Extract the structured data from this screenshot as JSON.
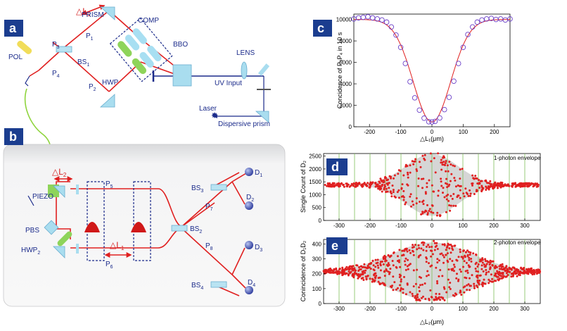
{
  "panels": {
    "a": "a",
    "b": "b",
    "c": "c",
    "d": "d",
    "e": "e"
  },
  "setup_a": {
    "prism": "PRISM",
    "delta_l1": "△L",
    "delta_l1_sub": "1",
    "comp": "COMP",
    "bbo": "BBO",
    "lens": "LENS",
    "uv_input": "UV Input",
    "laser": "Laser",
    "dispersive_prism": "Dispersive prism",
    "hwp": "HWP",
    "pol": "POL",
    "bs1": "BS",
    "bs1_sub": "1",
    "p1": "P",
    "p1_sub": "1",
    "p2": "P",
    "p2_sub": "2",
    "p3": "P",
    "p3_sub": "3",
    "p4": "P",
    "p4_sub": "4"
  },
  "setup_b": {
    "delta_l2": "△L",
    "delta_l2_sub": "2",
    "piezo": "PIEZO",
    "pbs": "PBS",
    "hwp2": "HWP",
    "hwp2_sub": "2",
    "delta_l1": "△L",
    "delta_l1_sub": "1",
    "p5": "P",
    "p5_sub": "5",
    "p6": "P",
    "p6_sub": "6",
    "p7": "P",
    "p7_sub": "7",
    "p8": "P",
    "p8_sub": "8",
    "bs2": "BS",
    "bs2_sub": "2",
    "bs3": "BS",
    "bs3_sub": "3",
    "bs4": "BS",
    "bs4_sub": "4",
    "d1": "D",
    "d1_sub": "1",
    "d2": "D",
    "d2_sub": "2",
    "d3": "D",
    "d3_sub": "3",
    "d4": "D",
    "d4_sub": "4"
  },
  "colors": {
    "label_bg": "#1b3d8f",
    "beam": "#e02020",
    "optics": "#1a2a8a",
    "fiber": "#8ed43c",
    "data": "#e02020",
    "fit": "#e02020",
    "marker": "#6a3fc8"
  },
  "chart_data": [
    {
      "panel": "c",
      "type": "scatter",
      "ylabel": "Concidence of P₃P₄ in 10 s",
      "xlabel": "△L₁(μm)",
      "xlim": [
        -250,
        250
      ],
      "ylim": [
        0,
        10500
      ],
      "xticks": [
        "-200",
        "-100",
        "0",
        "100",
        "200"
      ],
      "yticks": [
        "0",
        "2000",
        "4000",
        "6000",
        "8000",
        "10000"
      ],
      "fit": {
        "baseline": 10000,
        "dip": 9550,
        "center": 0,
        "width_um": 60
      },
      "markers": [
        {
          "x": -250,
          "y": 10050
        },
        {
          "x": -235,
          "y": 10150
        },
        {
          "x": -220,
          "y": 10200
        },
        {
          "x": -205,
          "y": 10250
        },
        {
          "x": -190,
          "y": 10150
        },
        {
          "x": -175,
          "y": 10050
        },
        {
          "x": -160,
          "y": 9950
        },
        {
          "x": -145,
          "y": 9750
        },
        {
          "x": -130,
          "y": 9300
        },
        {
          "x": -115,
          "y": 8550
        },
        {
          "x": -100,
          "y": 7400
        },
        {
          "x": -85,
          "y": 5900
        },
        {
          "x": -70,
          "y": 4200
        },
        {
          "x": -55,
          "y": 2700
        },
        {
          "x": -40,
          "y": 1550
        },
        {
          "x": -25,
          "y": 800
        },
        {
          "x": -10,
          "y": 470
        },
        {
          "x": 0,
          "y": 450
        },
        {
          "x": 10,
          "y": 500
        },
        {
          "x": 25,
          "y": 820
        },
        {
          "x": 40,
          "y": 1600
        },
        {
          "x": 55,
          "y": 2750
        },
        {
          "x": 70,
          "y": 4250
        },
        {
          "x": 85,
          "y": 5900
        },
        {
          "x": 100,
          "y": 7400
        },
        {
          "x": 115,
          "y": 8600
        },
        {
          "x": 130,
          "y": 9300
        },
        {
          "x": 145,
          "y": 9750
        },
        {
          "x": 160,
          "y": 9950
        },
        {
          "x": 175,
          "y": 10050
        },
        {
          "x": 190,
          "y": 10100
        },
        {
          "x": 205,
          "y": 10000
        },
        {
          "x": 220,
          "y": 10050
        },
        {
          "x": 235,
          "y": 9950
        },
        {
          "x": 250,
          "y": 10050
        }
      ]
    },
    {
      "panel": "d",
      "type": "scatter",
      "ylabel": "Single Count of D₂",
      "legend": "1-photon envelope",
      "xlim": [
        -350,
        350
      ],
      "ylim": [
        0,
        2600
      ],
      "xticks": [
        "-300",
        "-200",
        "-100",
        "0",
        "100",
        "200",
        "300"
      ],
      "yticks": [
        "0",
        "500",
        "1000",
        "1500",
        "2000",
        "2500"
      ],
      "baseline": 1380,
      "amplitude": 1200,
      "envelope_width_um": 85,
      "grid_x": [
        -300,
        -250,
        -200,
        -150,
        -100,
        -50,
        0,
        50,
        100,
        150,
        200,
        250,
        300
      ]
    },
    {
      "panel": "e",
      "type": "scatter",
      "ylabel": "Conincidence of D₁D₂",
      "legend": "2-photon envelope",
      "xlabel": "△L₂(μm)",
      "xlim": [
        -350,
        350
      ],
      "ylim": [
        0,
        430
      ],
      "xticks": [
        "-300",
        "-200",
        "-100",
        "0",
        "100",
        "200",
        "300"
      ],
      "yticks": [
        "0",
        "100",
        "200",
        "300",
        "400"
      ],
      "baseline": 215,
      "amplitude": 195,
      "envelope_width_um": 130,
      "grid_x": [
        -300,
        -250,
        -200,
        -150,
        -100,
        -50,
        0,
        50,
        100,
        150,
        200,
        250,
        300
      ]
    }
  ]
}
